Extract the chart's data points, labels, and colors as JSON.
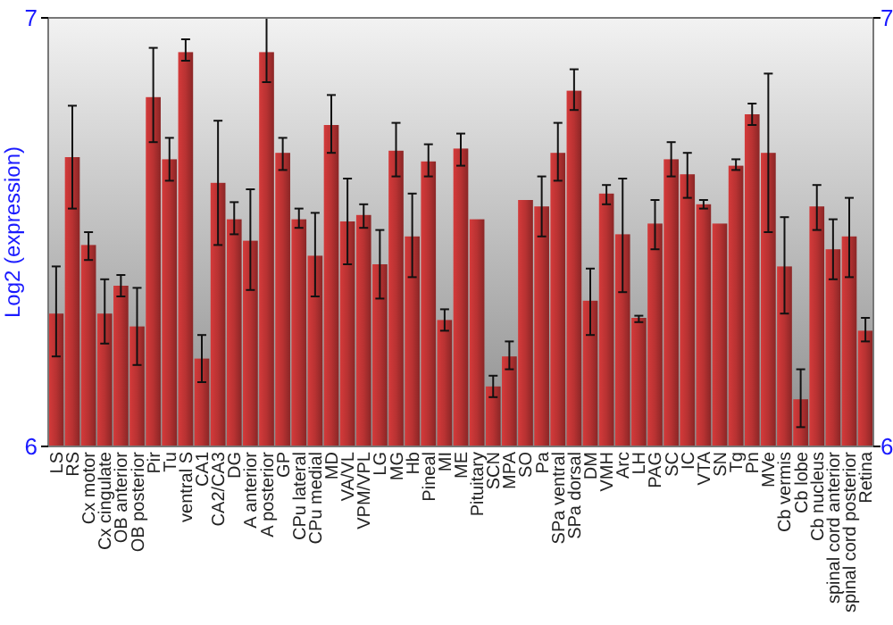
{
  "chart_data": {
    "type": "bar",
    "ylabel": "Log2 (expression)",
    "categories": [
      "LS",
      "RS",
      "Cx motor",
      "Cx cingulate",
      "OB anterior",
      "OB posterior",
      "Pir",
      "Tu",
      "ventral S",
      "CA1",
      "CA2/CA3",
      "DG",
      "A anterior",
      "A posterior",
      "GP",
      "CPu lateral",
      "CPu medial",
      "MD",
      "VA/VL",
      "VPM/VPL",
      "LG",
      "MG",
      "Hb",
      "Pineal",
      "MI",
      "ME",
      "Pituitary",
      "SCN",
      "MPA",
      "SO",
      "Pa",
      "SPa ventral",
      "SPa dorsal",
      "DM",
      "VMH",
      "Arc",
      "LH",
      "PAG",
      "SC",
      "IC",
      "VTA",
      "SN",
      "Tg",
      "Pn",
      "MVe",
      "Cb vermis",
      "Cb lobe",
      "Cb nucleus",
      "spinal cord anterior",
      "spinal cord posterior",
      "Retina"
    ],
    "values": [
      6.31,
      6.675,
      6.47,
      6.31,
      6.375,
      6.28,
      6.815,
      6.67,
      6.92,
      6.205,
      6.615,
      6.53,
      6.48,
      6.92,
      6.685,
      6.53,
      6.445,
      6.75,
      6.525,
      6.54,
      6.425,
      6.69,
      6.49,
      6.665,
      6.295,
      6.695,
      6.53,
      6.14,
      6.21,
      6.575,
      6.56,
      6.685,
      6.83,
      6.34,
      6.59,
      6.495,
      6.3,
      6.52,
      6.67,
      6.635,
      6.565,
      6.52,
      6.655,
      6.775,
      6.685,
      6.42,
      6.11,
      6.56,
      6.46,
      6.49,
      6.27
    ],
    "errors": [
      [
        6.21,
        6.42
      ],
      [
        6.555,
        6.795
      ],
      [
        6.435,
        6.5
      ],
      [
        6.24,
        6.39
      ],
      [
        6.35,
        6.4
      ],
      [
        6.19,
        6.37
      ],
      [
        6.71,
        6.93
      ],
      [
        6.62,
        6.72
      ],
      [
        6.9,
        6.95
      ],
      [
        6.15,
        6.26
      ],
      [
        6.47,
        6.76
      ],
      [
        6.495,
        6.57
      ],
      [
        6.365,
        6.6
      ],
      [
        6.85,
        7.0
      ],
      [
        6.645,
        6.72
      ],
      [
        6.51,
        6.555
      ],
      [
        6.35,
        6.545
      ],
      [
        6.685,
        6.82
      ],
      [
        6.425,
        6.625
      ],
      [
        6.51,
        6.565
      ],
      [
        6.345,
        6.505
      ],
      [
        6.63,
        6.755
      ],
      [
        6.395,
        6.59
      ],
      [
        6.63,
        6.705
      ],
      [
        6.27,
        6.32
      ],
      [
        6.655,
        6.73
      ],
      null,
      [
        6.115,
        6.165
      ],
      [
        6.18,
        6.245
      ],
      null,
      [
        6.49,
        6.63
      ],
      [
        6.62,
        6.755
      ],
      [
        6.785,
        6.88
      ],
      [
        6.26,
        6.415
      ],
      [
        6.565,
        6.61
      ],
      [
        6.36,
        6.625
      ],
      [
        6.29,
        6.305
      ],
      [
        6.46,
        6.575
      ],
      [
        6.63,
        6.71
      ],
      [
        6.58,
        6.685
      ],
      [
        6.555,
        6.575
      ],
      null,
      [
        6.645,
        6.67
      ],
      [
        6.75,
        6.8
      ],
      [
        6.5,
        6.87
      ],
      [
        6.31,
        6.535
      ],
      [
        6.045,
        6.18
      ],
      [
        6.505,
        6.61
      ],
      [
        6.39,
        6.53
      ],
      [
        6.395,
        6.58
      ],
      [
        6.245,
        6.3
      ]
    ],
    "color": "#b83232",
    "ylim": [
      6,
      7
    ],
    "yticks": [
      6,
      7
    ],
    "y2lim": [
      6,
      7
    ],
    "y2ticks": [
      6,
      7
    ]
  }
}
